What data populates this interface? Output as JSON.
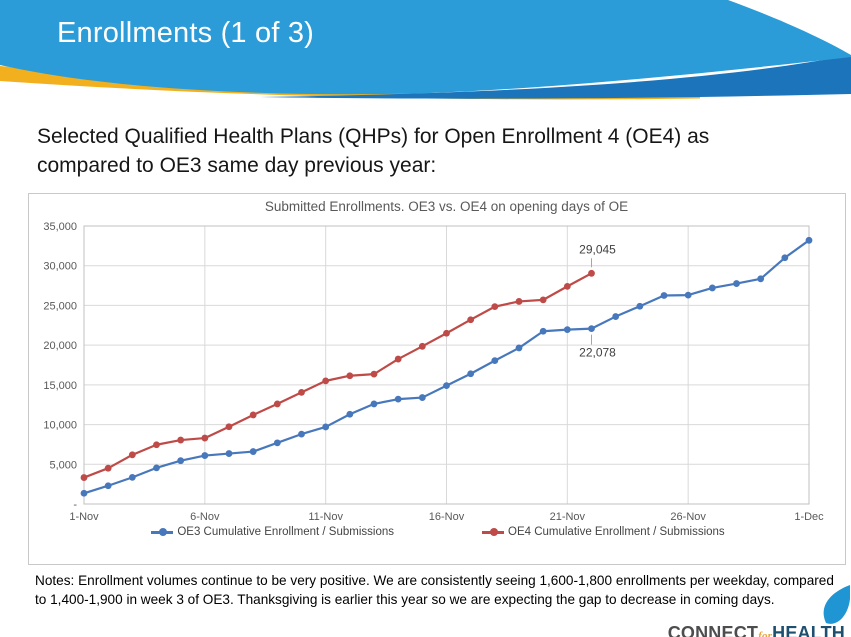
{
  "slide": {
    "title": "Enrollments (1 of 3)",
    "subtitle": "Selected Qualified Health Plans (QHPs) for Open Enrollment 4 (OE4) as compared to OE3 same day previous year:",
    "notes": "Notes: Enrollment volumes continue to be very positive.  We are consistently seeing 1,600-1,800 enrollments per weekday, compared to 1,400-1,900 in week 3 of OE3. Thanksgiving is earlier this year so we are expecting the gap to decrease in coming days.",
    "logo": {
      "connect": "CONNECT",
      "for": "for",
      "health": "HEALTH"
    }
  },
  "colors": {
    "banner_blue": "#2B9CD8",
    "banner_dark_blue": "#1C75BB",
    "banner_gold": "#F2B01E",
    "grid": "#D9D9D9",
    "plot_border": "#C0C0C0",
    "axis_text": "#595959",
    "data_label_text": "#404040",
    "leader_line": "#A6A6A6",
    "oe3_blue": "#4878BC",
    "oe4_red": "#BE4B48",
    "logo_leaf_blue": "#2095D3"
  },
  "chart_data": {
    "type": "line",
    "title": "Submitted Enrollments. OE3 vs. OE4 on opening days of OE",
    "x_tick_labels": [
      "1-Nov",
      "6-Nov",
      "11-Nov",
      "16-Nov",
      "21-Nov",
      "26-Nov",
      "1-Dec"
    ],
    "x_tick_indices": [
      0,
      5,
      10,
      15,
      20,
      25,
      30
    ],
    "x_days": 31,
    "y_tick_labels": [
      "35,000",
      "30,000",
      "25,000",
      "20,000",
      "15,000",
      "10,000",
      "5,000",
      "-"
    ],
    "y_tick_values": [
      35000,
      30000,
      25000,
      20000,
      15000,
      10000,
      5000,
      0
    ],
    "ylim": [
      0,
      35000
    ],
    "grid": true,
    "legend_position": "bottom",
    "series": [
      {
        "name": "OE3 Cumulative Enrollment / Submissions",
        "color": "#4878BC",
        "values": [
          1350,
          2300,
          3350,
          4550,
          5450,
          6100,
          6350,
          6600,
          7700,
          8800,
          9700,
          11300,
          12600,
          13200,
          13400,
          14900,
          16400,
          18050,
          19650,
          21750,
          21950,
          22078,
          23600,
          24900,
          26250,
          26300,
          27200,
          27750,
          28350,
          31000,
          33200
        ]
      },
      {
        "name": "OE4 Cumulative Enrollment / Submissions",
        "color": "#BE4B48",
        "values": [
          3330,
          4510,
          6190,
          7460,
          8050,
          8300,
          9730,
          11210,
          12600,
          14050,
          15500,
          16150,
          16350,
          18250,
          19850,
          21500,
          23200,
          24850,
          25500,
          25700,
          27400,
          29045
        ]
      }
    ],
    "annotations": [
      {
        "text": "29,045",
        "series": 1,
        "index": 21,
        "position": "above"
      },
      {
        "text": "22,078",
        "series": 0,
        "index": 21,
        "position": "below"
      }
    ]
  }
}
